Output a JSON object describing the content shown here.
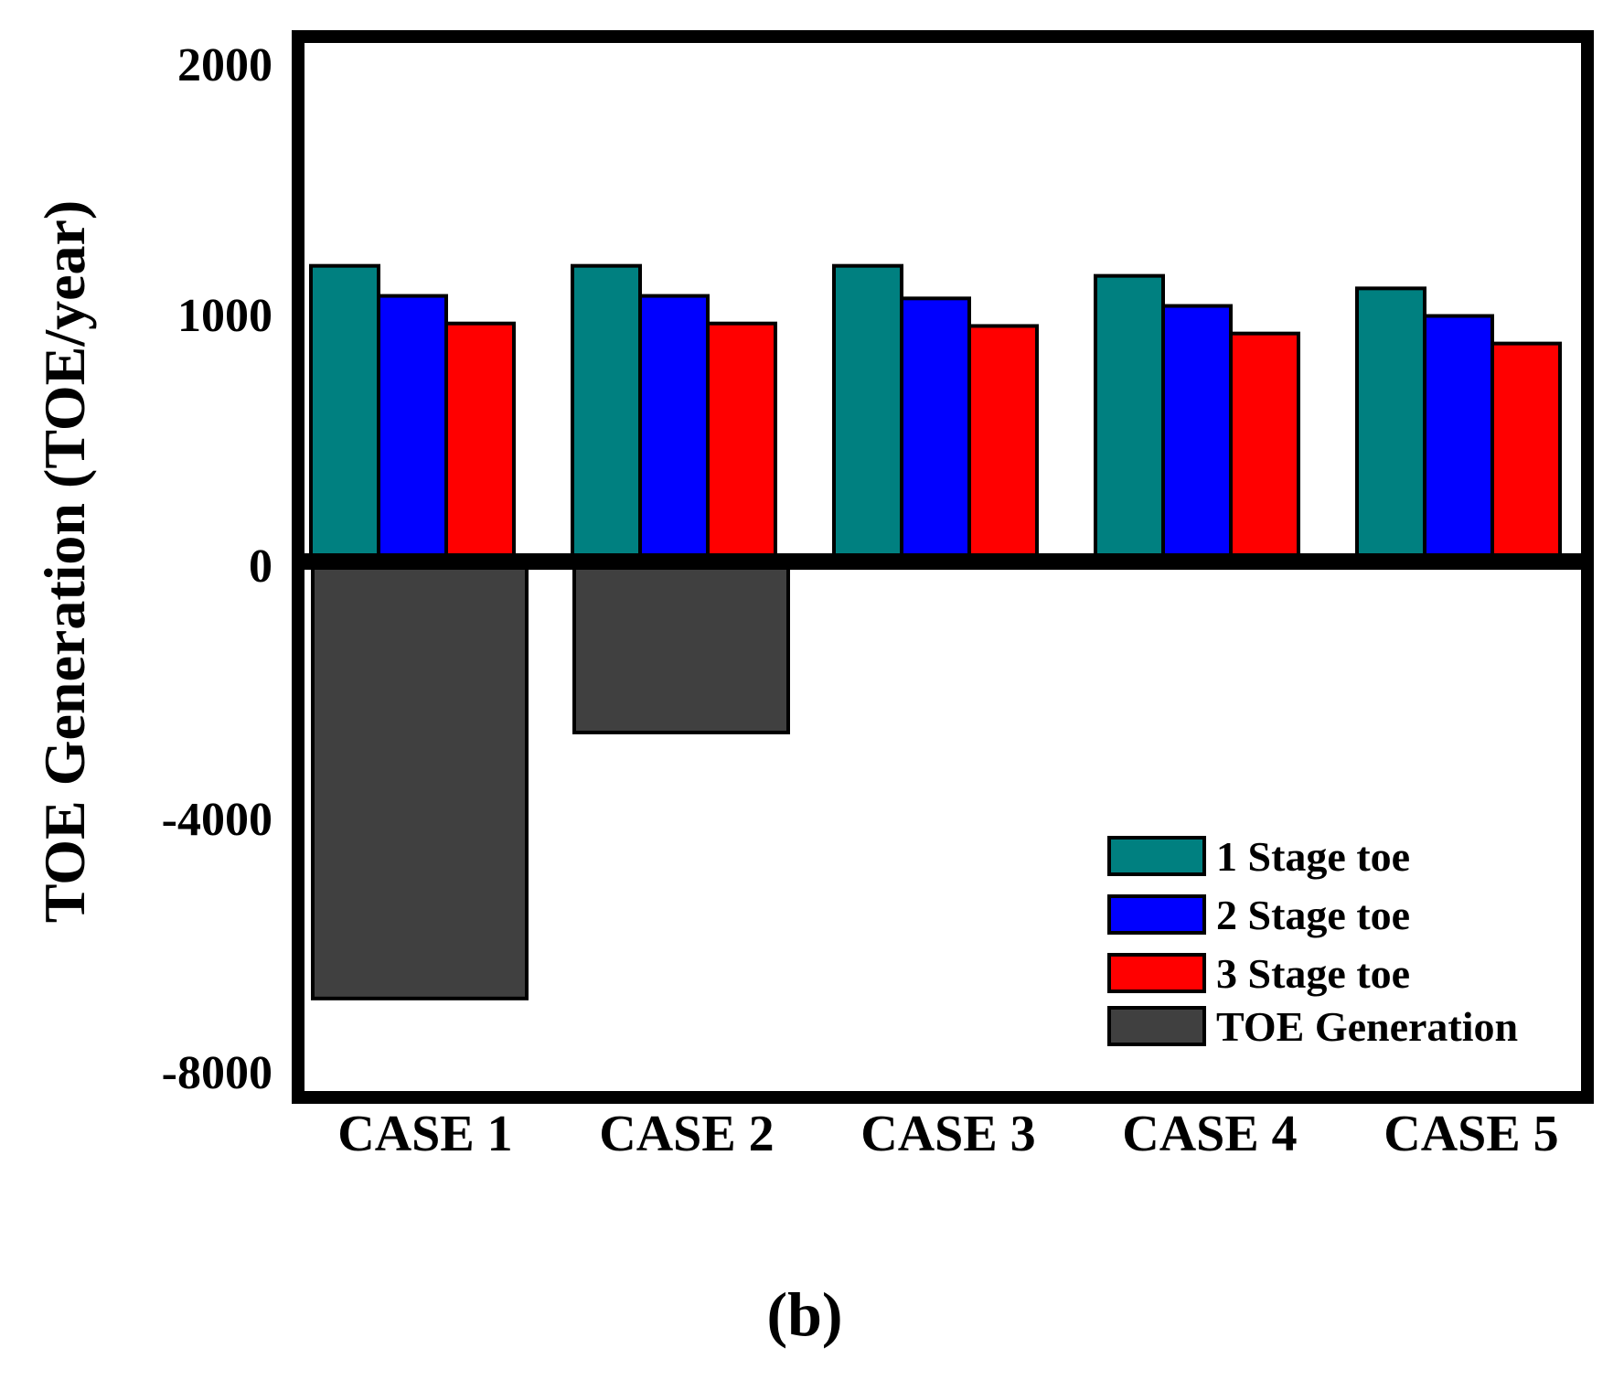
{
  "chart_data": {
    "type": "bar",
    "title": "",
    "xlabel": "",
    "ylabel": "TOE Generation (TOE/year)",
    "caption": "(b)",
    "categories": [
      "CASE 1",
      "CASE 2",
      "CASE 3",
      "CASE 4",
      "CASE 5"
    ],
    "y_ticks": [
      {
        "label": "2000",
        "value": 2000
      },
      {
        "label": "1000",
        "value": 1000
      },
      {
        "label": "0",
        "value": 0
      },
      {
        "label": "-4000",
        "value": -4000
      },
      {
        "label": "-8000",
        "value": -8000
      }
    ],
    "axis_scale_note": "broken axis: 2000 units per segment above zero, 4000 units per segment below zero",
    "ylim": [
      -8000,
      2000
    ],
    "grid": false,
    "legend_position": "bottom-right",
    "series": [
      {
        "name": "1 Stage toe",
        "color": "#008080",
        "values": [
          1180,
          1180,
          1180,
          1140,
          1090
        ]
      },
      {
        "name": "2 Stage toe",
        "color": "#0000ff",
        "values": [
          1060,
          1060,
          1050,
          1020,
          980
        ]
      },
      {
        "name": "3 Stage toe",
        "color": "#ff0000",
        "values": [
          950,
          950,
          940,
          910,
          870
        ]
      },
      {
        "name": "TOE Generation",
        "color": "#404040",
        "values": [
          -6900,
          -2700,
          0,
          0,
          0
        ]
      }
    ]
  }
}
